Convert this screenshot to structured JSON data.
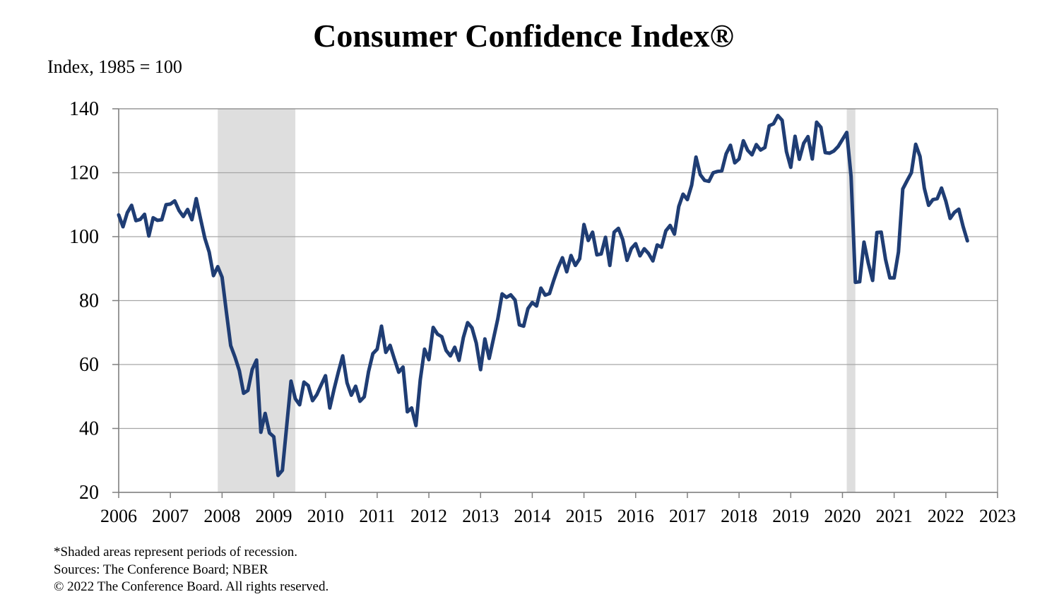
{
  "chart_data": {
    "type": "line",
    "title": "Consumer Confidence Index®",
    "ylabel": "Index, 1985 = 100",
    "xlabel": "",
    "xlim": [
      2006,
      2023
    ],
    "ylim": [
      20,
      140
    ],
    "x_ticks": [
      "2006",
      "2007",
      "2008",
      "2009",
      "2010",
      "2011",
      "2012",
      "2013",
      "2014",
      "2015",
      "2016",
      "2017",
      "2018",
      "2019",
      "2020",
      "2021",
      "2022",
      "2023"
    ],
    "y_ticks": [
      20,
      40,
      60,
      80,
      100,
      120,
      140
    ],
    "grid": "horizontal",
    "legend": "none",
    "recessions": [
      {
        "start": "2007-12",
        "end": "2009-06"
      },
      {
        "start": "2020-02",
        "end": "2020-04"
      }
    ],
    "series": [
      {
        "name": "",
        "color": "#1f3d74",
        "x_start": "2006-01",
        "frequency": "monthly",
        "values": [
          106.8,
          103.1,
          107.5,
          109.8,
          105.0,
          105.4,
          107.0,
          100.2,
          105.9,
          105.1,
          105.3,
          110.0,
          110.2,
          111.2,
          108.2,
          106.3,
          108.5,
          105.3,
          111.9,
          105.6,
          99.5,
          95.2,
          87.8,
          90.6,
          87.3,
          76.4,
          65.9,
          62.3,
          58.1,
          51.0,
          51.9,
          58.5,
          61.4,
          38.8,
          44.7,
          38.6,
          37.4,
          25.3,
          26.9,
          40.8,
          54.8,
          49.3,
          47.4,
          54.5,
          53.4,
          48.7,
          50.6,
          53.6,
          56.5,
          46.4,
          52.3,
          57.7,
          62.7,
          54.3,
          50.4,
          53.2,
          48.5,
          49.9,
          57.8,
          63.4,
          64.8,
          72.0,
          63.8,
          66.0,
          61.7,
          57.6,
          59.2,
          45.2,
          46.4,
          40.9,
          55.2,
          64.8,
          61.5,
          71.6,
          69.5,
          68.7,
          64.4,
          62.7,
          65.4,
          61.3,
          68.4,
          73.1,
          71.5,
          66.7,
          58.4,
          68.0,
          61.9,
          68.1,
          74.3,
          82.1,
          81.0,
          81.8,
          80.2,
          72.4,
          72.0,
          77.5,
          79.4,
          78.3,
          83.9,
          81.7,
          82.2,
          86.4,
          90.3,
          93.4,
          89.0,
          94.1,
          91.0,
          93.1,
          103.8,
          98.8,
          101.4,
          94.3,
          94.6,
          99.8,
          91.0,
          101.4,
          102.6,
          99.1,
          92.6,
          96.3,
          97.8,
          94.0,
          96.2,
          94.7,
          92.4,
          97.4,
          96.7,
          101.8,
          103.5,
          100.8,
          109.4,
          113.3,
          111.6,
          116.1,
          124.9,
          119.4,
          117.6,
          117.3,
          120.0,
          120.4,
          120.6,
          125.9,
          128.6,
          123.1,
          124.3,
          130.0,
          127.0,
          125.6,
          128.8,
          127.1,
          127.9,
          134.7,
          135.3,
          137.9,
          136.4,
          126.6,
          121.7,
          131.4,
          124.2,
          129.2,
          131.3,
          124.3,
          135.8,
          134.2,
          126.3,
          126.1,
          126.8,
          128.2,
          130.4,
          132.6,
          118.8,
          85.7,
          85.9,
          98.3,
          91.7,
          86.3,
          101.3,
          101.4,
          92.9,
          87.1,
          87.1,
          95.2,
          114.9,
          117.5,
          120.0,
          128.9,
          125.1,
          115.2,
          109.8,
          111.6,
          111.9,
          115.2,
          111.1,
          105.7,
          107.6,
          108.6,
          103.2,
          98.7
        ]
      }
    ]
  },
  "footnotes": [
    "*Shaded areas represent periods of recession.",
    "Sources: The Conference Board; NBER",
    "© 2022 The Conference Board. All rights reserved."
  ]
}
